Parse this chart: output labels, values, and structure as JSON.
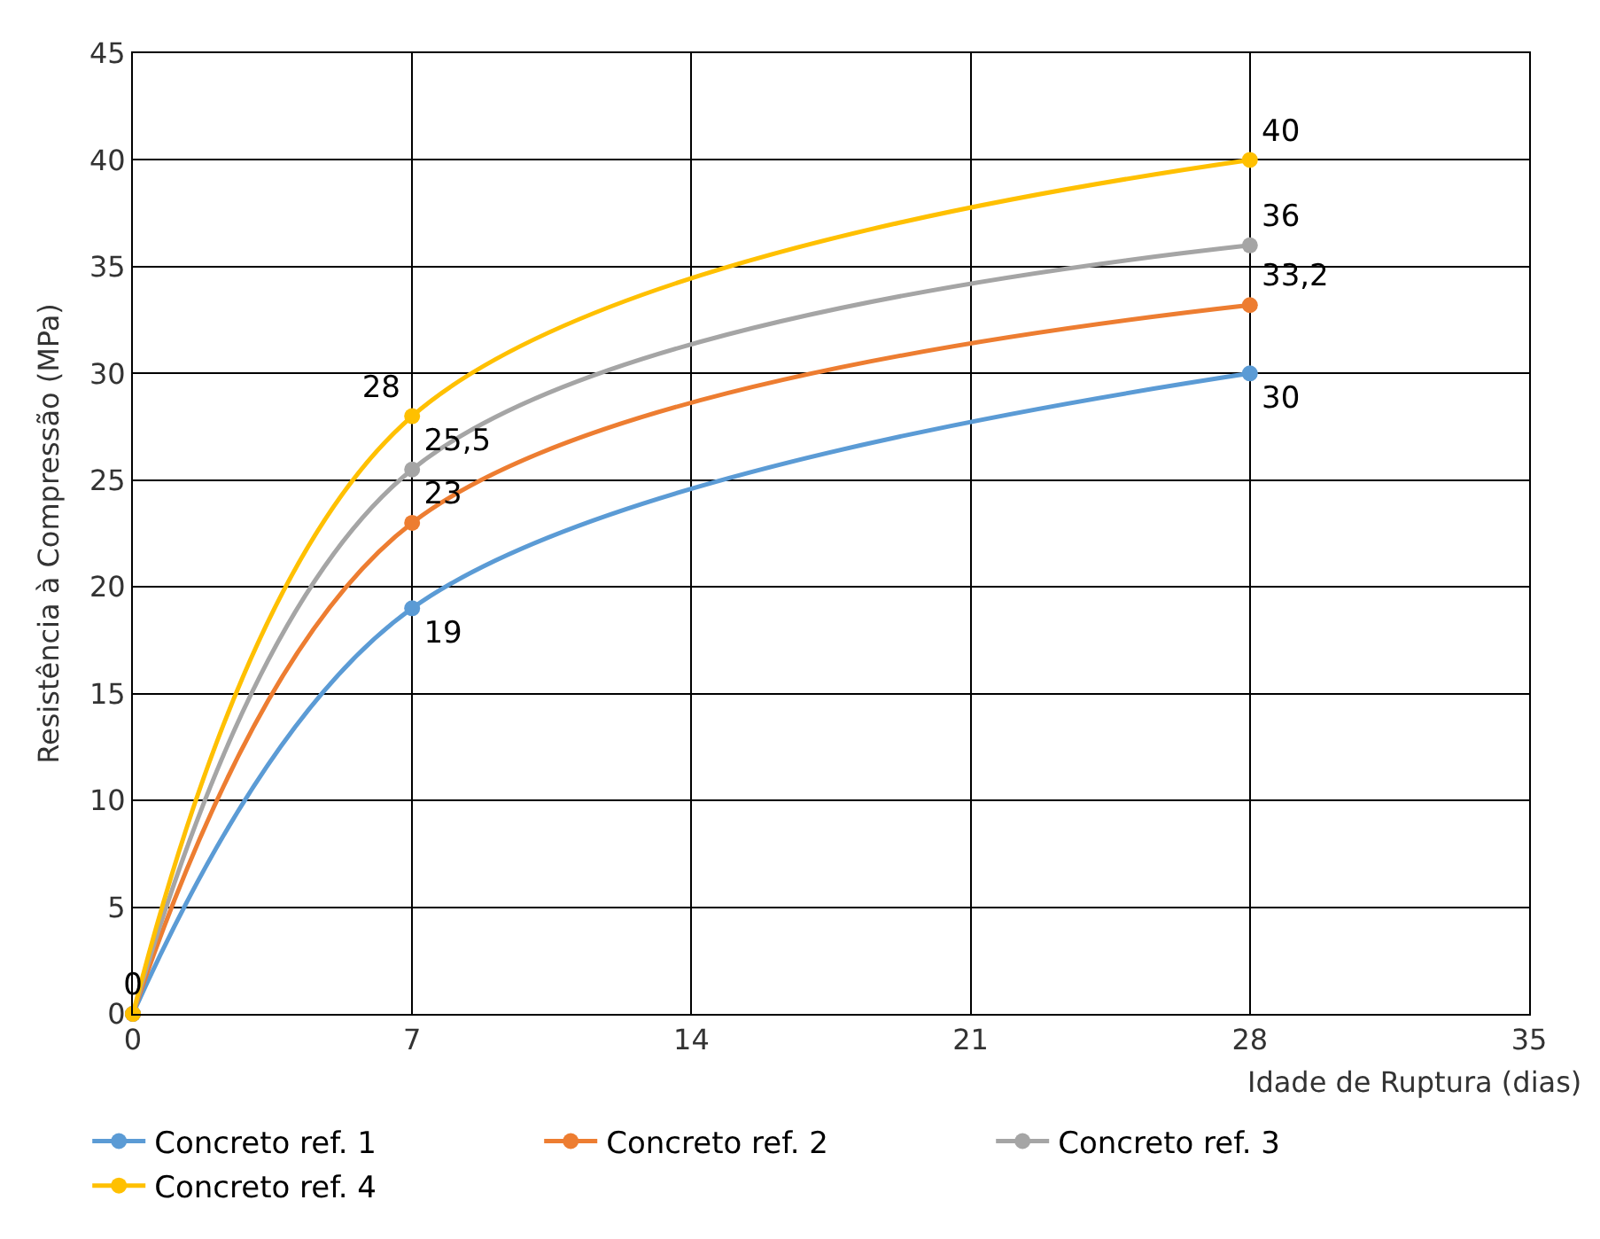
{
  "chart_data": {
    "type": "line",
    "xlabel": "Idade de Ruptura (dias)",
    "ylabel": "Resistência à Compressão (MPa)",
    "x": [
      0,
      7,
      28
    ],
    "series": [
      {
        "name": "Concreto ref. 1",
        "color": "#5b9bd5",
        "values": [
          0,
          19,
          30
        ],
        "value_labels": [
          null,
          "19",
          "30"
        ]
      },
      {
        "name": "Concreto ref. 2",
        "color": "#ed7d31",
        "values": [
          0,
          23,
          33.2
        ],
        "value_labels": [
          null,
          "23",
          "33,2"
        ]
      },
      {
        "name": "Concreto ref. 3",
        "color": "#a5a5a5",
        "values": [
          0,
          25.5,
          36
        ],
        "value_labels": [
          null,
          "25,5",
          "36"
        ]
      },
      {
        "name": "Concreto ref. 4",
        "color": "#ffc000",
        "values": [
          0,
          28,
          40
        ],
        "value_labels": [
          "0",
          "28",
          "40"
        ]
      }
    ],
    "xlim": [
      0,
      35
    ],
    "xticks": [
      0,
      7,
      14,
      21,
      28,
      35
    ],
    "ylim": [
      0,
      45
    ],
    "yticks": [
      0,
      5,
      10,
      15,
      20,
      25,
      30,
      35,
      40,
      45
    ],
    "grid": true,
    "legend": "bottom",
    "marker": "circle",
    "line_style": "solid"
  }
}
